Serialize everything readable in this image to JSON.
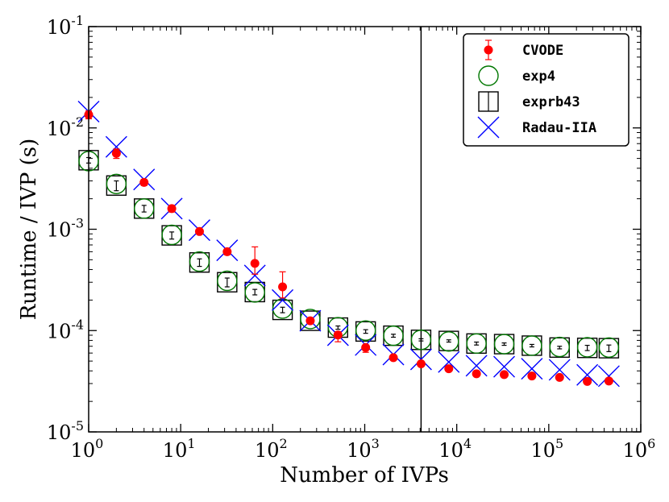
{
  "chart_data": {
    "type": "scatter",
    "title": "",
    "xlabel": "Number of IVPs",
    "ylabel": "Runtime / IVP (s)",
    "xscale": "log",
    "yscale": "log",
    "xlim": [
      1,
      1000000
    ],
    "ylim": [
      1e-05,
      0.1
    ],
    "grid": false,
    "legend_position": "top-right",
    "x_tick_bases": [
      "10",
      "10",
      "10",
      "10",
      "10",
      "10",
      "10"
    ],
    "x_tick_exponents": [
      "0",
      "1",
      "2",
      "3",
      "4",
      "5",
      "6"
    ],
    "x_tick_values": [
      1,
      10,
      100,
      1000,
      10000,
      100000,
      1000000
    ],
    "y_tick_bases": [
      "10",
      "10",
      "10",
      "10",
      "10"
    ],
    "y_tick_exponents": [
      "-5",
      "-4",
      "-3",
      "-2",
      "-1"
    ],
    "y_tick_values": [
      1e-05,
      0.0001,
      0.001,
      0.01,
      0.1
    ],
    "vline_x": 4096,
    "x": [
      1,
      2,
      4,
      8,
      16,
      32,
      64,
      128,
      256,
      512,
      1024,
      2048,
      4096,
      8192,
      16384,
      32768,
      65536,
      131072,
      262144,
      450000
    ],
    "series": [
      {
        "name": "CVODE",
        "marker": "filled-circle",
        "color": "#ff0000",
        "values": [
          0.0135,
          0.0056,
          0.0029,
          0.0016,
          0.00095,
          0.0006,
          0.00046,
          0.00027,
          0.000125,
          9.05e-05,
          6.8e-05,
          5.4e-05,
          4.7e-05,
          4.2e-05,
          3.75e-05,
          3.68e-05,
          3.56e-05,
          3.45e-05,
          3.15e-05,
          3.18e-05
        ],
        "err_upper": [
          0.0012,
          0.0006,
          0.0002,
          0.00012,
          5e-05,
          4e-05,
          0.00021,
          0.00011,
          5e-06,
          7e-06,
          4e-06,
          2e-06,
          1e-06,
          1e-06,
          1e-06,
          1e-06,
          1e-06,
          1e-06,
          1e-06,
          1e-06
        ],
        "err_lower": [
          0.0012,
          0.0006,
          0.0002,
          0.00012,
          5e-05,
          4e-05,
          0.0001,
          6e-05,
          5e-06,
          1.3e-05,
          7e-06,
          2e-06,
          1e-06,
          1e-06,
          1e-06,
          1e-06,
          1e-06,
          1e-06,
          1e-06,
          1e-06
        ]
      },
      {
        "name": "exp4",
        "marker": "open-circle",
        "color": "#007700",
        "values": [
          0.0047,
          0.0028,
          0.0016,
          0.00088,
          0.00048,
          0.00031,
          0.000238,
          0.000165,
          0.00013,
          0.000108,
          0.0001,
          8.9e-05,
          8.1e-05,
          7.8e-05,
          7.45e-05,
          7.35e-05,
          7.1e-05,
          6.9e-05,
          6.85e-05,
          6.8e-05
        ]
      },
      {
        "name": "exprb43",
        "marker": "open-square",
        "color": "#000000",
        "values": [
          0.0048,
          0.0027,
          0.0016,
          0.00087,
          0.00047,
          0.0003,
          0.00024,
          0.00016,
          0.000125,
          0.000107,
          9.8e-05,
          8.9e-05,
          8.1e-05,
          7.9e-05,
          7.45e-05,
          7.35e-05,
          7.1e-05,
          6.8e-05,
          6.75e-05,
          6.7e-05
        ],
        "err_upper": [
          0.0003,
          0.0003,
          0.00012,
          7e-05,
          4e-05,
          3e-05,
          1.5e-05,
          1e-05,
          4e-06,
          4e-06,
          4e-06,
          3e-06,
          2e-06,
          2e-06,
          2.5e-06,
          2e-06,
          2e-06,
          2e-06,
          4e-06,
          5e-06
        ],
        "err_lower": [
          0.0003,
          0.0003,
          0.00012,
          7e-05,
          4e-05,
          3e-05,
          1.5e-05,
          1e-05,
          4e-06,
          4e-06,
          4e-06,
          3e-06,
          2e-06,
          2e-06,
          2.5e-06,
          2e-06,
          2e-06,
          2e-06,
          4e-06,
          5e-06
        ]
      },
      {
        "name": "Radau-IIA",
        "marker": "x",
        "color": "#0000ff",
        "values": [
          0.0145,
          0.0065,
          0.0031,
          0.0016,
          0.00098,
          0.00062,
          0.00035,
          0.0002,
          0.000125,
          9e-05,
          7.2e-05,
          5.8e-05,
          5.2e-05,
          4.9e-05,
          4.5e-05,
          4.4e-05,
          4.2e-05,
          4.1e-05,
          3.65e-05,
          3.55e-05
        ]
      }
    ]
  }
}
